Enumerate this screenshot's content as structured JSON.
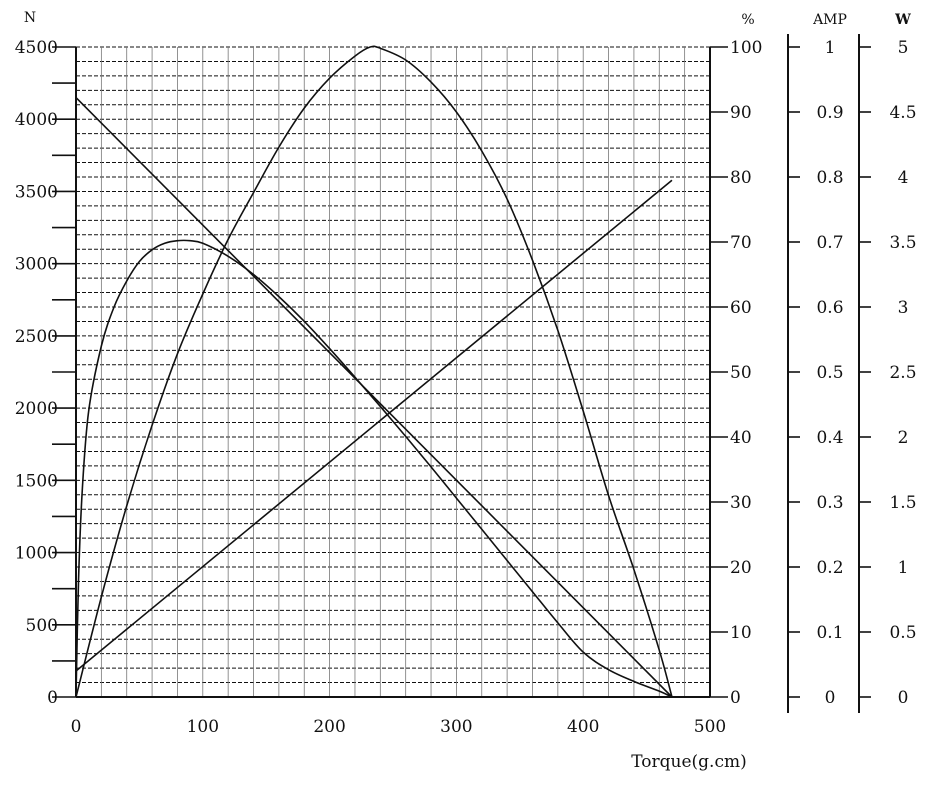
{
  "chart_data": {
    "type": "line",
    "x_axis": {
      "label": "Torque(g.cm)",
      "range": [
        0,
        500
      ],
      "ticks": [
        "0",
        "100",
        "200",
        "300",
        "400",
        "500"
      ]
    },
    "y_axes": [
      {
        "id": "speed",
        "unit": "N",
        "range": [
          0,
          4500
        ],
        "ticks": [
          "0",
          "500",
          "1000",
          "1500",
          "2000",
          "2500",
          "3000",
          "3500",
          "4000",
          "4500"
        ]
      },
      {
        "id": "efficiency",
        "unit": "%",
        "range": [
          0,
          100
        ],
        "ticks": [
          "0",
          "10",
          "20",
          "30",
          "40",
          "50",
          "60",
          "70",
          "80",
          "90",
          "100"
        ]
      },
      {
        "id": "current",
        "unit": "AMP",
        "range": [
          0,
          1
        ],
        "ticks": [
          "0",
          "0.1",
          "0.2",
          "0.3",
          "0.4",
          "0.5",
          "0.6",
          "0.7",
          "0.8",
          "0.9",
          "1"
        ]
      },
      {
        "id": "power",
        "unit": "W",
        "range": [
          0,
          5
        ],
        "ticks": [
          "0",
          "0.5",
          "1",
          "1.5",
          "2",
          "2.5",
          "3",
          "3.5",
          "4",
          "4.5",
          "5"
        ]
      }
    ],
    "grid": true,
    "series": [
      {
        "axis": "speed",
        "x": [
          0,
          470
        ],
        "y": [
          4150,
          0
        ]
      },
      {
        "axis": "current",
        "x": [
          0,
          470
        ],
        "y": [
          0.04,
          0.795
        ]
      },
      {
        "axis": "efficiency",
        "x": [
          0,
          2,
          5,
          10,
          20,
          30,
          40,
          50,
          60,
          70,
          80,
          90,
          100,
          120,
          140,
          160,
          180,
          200,
          220,
          240,
          260,
          280,
          300,
          320,
          340,
          360,
          380,
          400,
          420,
          440,
          460,
          470
        ],
        "y": [
          0,
          18,
          32,
          44,
          54,
          60,
          64,
          67,
          68.8,
          69.8,
          70.2,
          70.2,
          69.8,
          67.8,
          65,
          61.6,
          57.8,
          53.6,
          49.2,
          44.7,
          40.1,
          35.4,
          30.6,
          25.8,
          21,
          16.2,
          11.4,
          6.9,
          4.2,
          2.4,
          0.9,
          0
        ]
      },
      {
        "axis": "power",
        "x": [
          0,
          20,
          40,
          60,
          80,
          100,
          120,
          140,
          160,
          180,
          200,
          220,
          232,
          240,
          260,
          280,
          300,
          320,
          340,
          360,
          380,
          400,
          420,
          440,
          460,
          470
        ],
        "y": [
          0,
          0.77,
          1.47,
          2.09,
          2.64,
          3.1,
          3.52,
          3.88,
          4.23,
          4.53,
          4.76,
          4.93,
          5.0,
          4.99,
          4.9,
          4.73,
          4.5,
          4.2,
          3.83,
          3.36,
          2.82,
          2.2,
          1.55,
          0.98,
          0.36,
          0
        ]
      }
    ]
  }
}
